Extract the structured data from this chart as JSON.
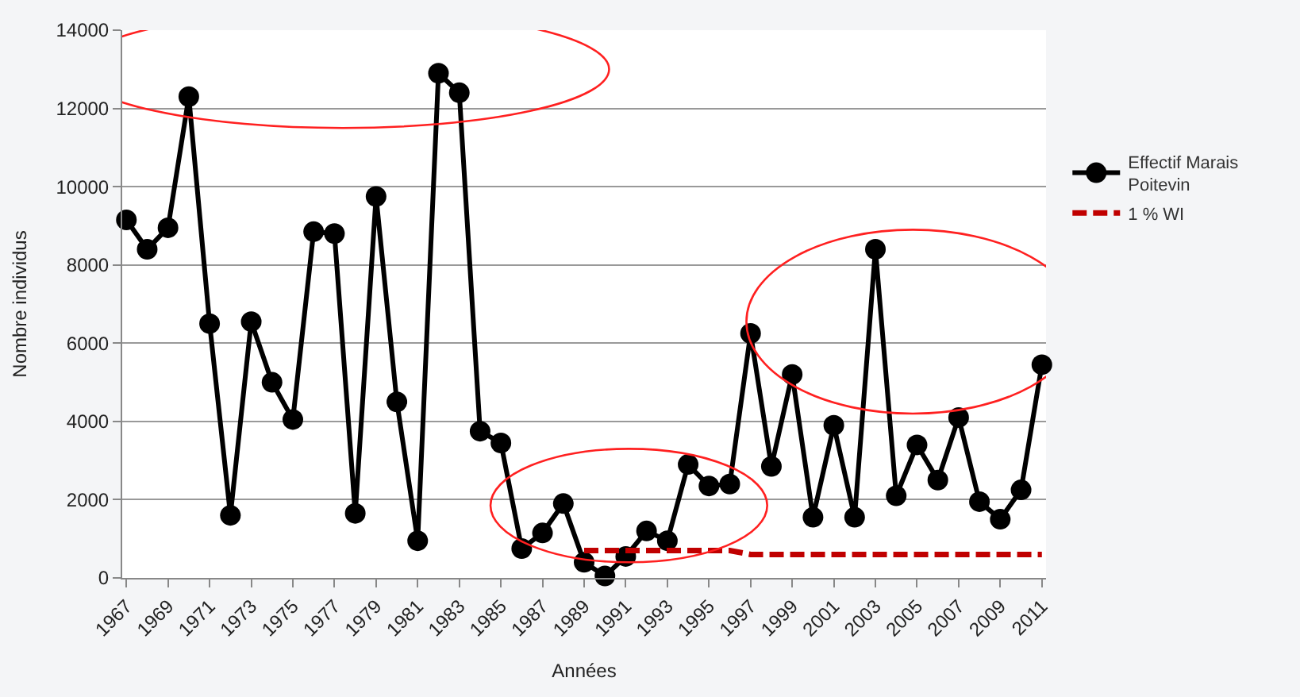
{
  "chart_data": {
    "type": "line",
    "xlabel": "Années",
    "ylabel": "Nombre individus",
    "x": [
      1967,
      1968,
      1969,
      1970,
      1971,
      1972,
      1973,
      1974,
      1975,
      1976,
      1977,
      1978,
      1979,
      1980,
      1981,
      1982,
      1983,
      1984,
      1985,
      1986,
      1987,
      1988,
      1989,
      1990,
      1991,
      1992,
      1993,
      1994,
      1995,
      1996,
      1997,
      1998,
      1999,
      2000,
      2001,
      2002,
      2003,
      2004,
      2005,
      2006,
      2007,
      2008,
      2009,
      2010,
      2011
    ],
    "series": [
      {
        "name": "Effectif Marais Poitevin",
        "color": "#000000",
        "marker": "circle",
        "line_style": "solid",
        "values": [
          9150,
          8400,
          8950,
          12300,
          6500,
          1600,
          6550,
          5000,
          4050,
          8850,
          8800,
          1650,
          9750,
          4500,
          950,
          12900,
          12400,
          3750,
          3450,
          750,
          1150,
          1900,
          400,
          50,
          550,
          1200,
          950,
          2900,
          2350,
          2400,
          6250,
          2850,
          5200,
          1550,
          3900,
          1550,
          8400,
          2100,
          3400,
          2500,
          4100,
          1950,
          1500,
          2250,
          5450
        ]
      },
      {
        "name": "1 % WI",
        "color": "#c00000",
        "marker": "none",
        "line_style": "dashed",
        "values": [
          null,
          null,
          null,
          null,
          null,
          null,
          null,
          null,
          null,
          null,
          null,
          null,
          null,
          null,
          null,
          null,
          null,
          null,
          null,
          null,
          null,
          null,
          700,
          700,
          700,
          700,
          700,
          700,
          700,
          700,
          600,
          600,
          600,
          600,
          600,
          600,
          600,
          600,
          600,
          600,
          600,
          600,
          600,
          600,
          600
        ]
      }
    ],
    "xlim": [
      1966.8,
      2011.2
    ],
    "xticks": [
      1967,
      1969,
      1971,
      1973,
      1975,
      1977,
      1979,
      1981,
      1983,
      1985,
      1987,
      1989,
      1991,
      1993,
      1995,
      1997,
      1999,
      2001,
      2003,
      2005,
      2007,
      2009,
      2011
    ],
    "ylim": [
      0,
      14000
    ],
    "yticks": [
      0,
      2000,
      4000,
      6000,
      8000,
      10000,
      12000,
      14000
    ],
    "grid": "y",
    "legend": "right"
  }
}
